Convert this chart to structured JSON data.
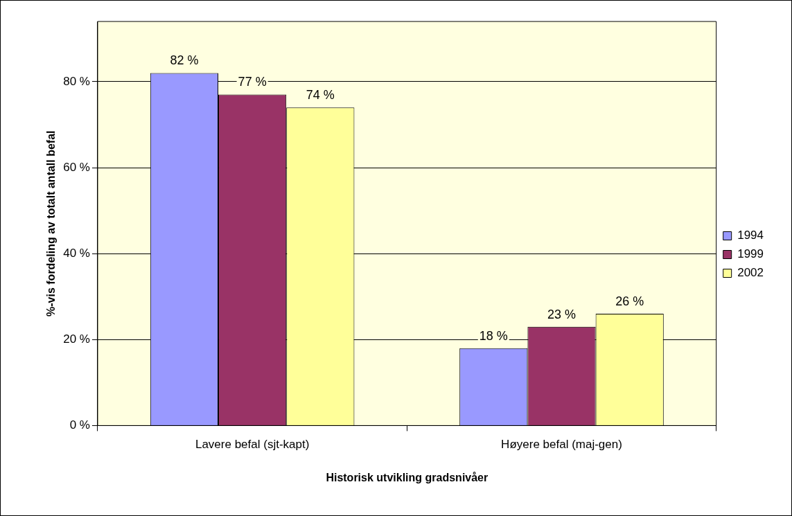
{
  "chart_data": {
    "type": "bar",
    "xlabel": "Historisk utvikling gradsnivåer",
    "ylabel": "%-vis fordeling av totalt antall befal",
    "categories": [
      "Lavere befal (sjt-kapt)",
      "Høyere befal (maj-gen)"
    ],
    "series": [
      {
        "name": "1994",
        "color": "#9999ff",
        "values": [
          82,
          18
        ],
        "value_labels": [
          "82 %",
          "18 %"
        ]
      },
      {
        "name": "1999",
        "color": "#993366",
        "values": [
          77,
          23
        ],
        "value_labels": [
          "77 %",
          "23 %"
        ]
      },
      {
        "name": "2002",
        "color": "#ffff99",
        "values": [
          74,
          26
        ],
        "value_labels": [
          "74 %",
          "26 %"
        ]
      }
    ],
    "ylim": [
      0,
      94
    ],
    "yticks": [
      {
        "value": 0,
        "label": "0 %"
      },
      {
        "value": 20,
        "label": "20 %"
      },
      {
        "value": 40,
        "label": "40 %"
      },
      {
        "value": 60,
        "label": "60 %"
      },
      {
        "value": 80,
        "label": "80 %"
      }
    ],
    "grid": "y",
    "legend": "right"
  }
}
